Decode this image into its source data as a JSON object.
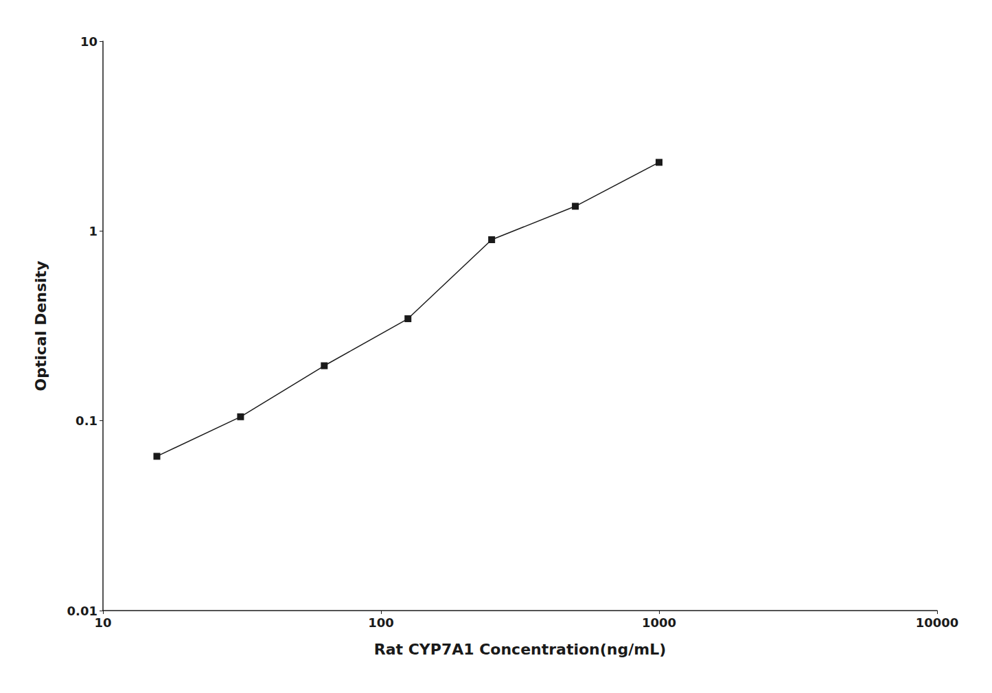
{
  "chart_data": {
    "type": "line",
    "xlabel": "Rat CYP7A1 Concentration(ng/mL)",
    "ylabel": "Optical Density",
    "x": [
      15.625,
      31.25,
      62.5,
      125,
      250,
      500,
      1000
    ],
    "values": [
      0.065,
      0.105,
      0.195,
      0.345,
      0.9,
      1.35,
      2.3
    ],
    "color": "#1a1a1a",
    "marker": "square",
    "line_style": "solid",
    "log": true,
    "xlim": [
      10,
      10000
    ],
    "ylim": [
      0.01,
      10
    ],
    "xticks": [
      10,
      100,
      1000,
      10000
    ],
    "yticks": [
      0.01,
      0.1,
      1,
      10
    ],
    "grid": false
  }
}
